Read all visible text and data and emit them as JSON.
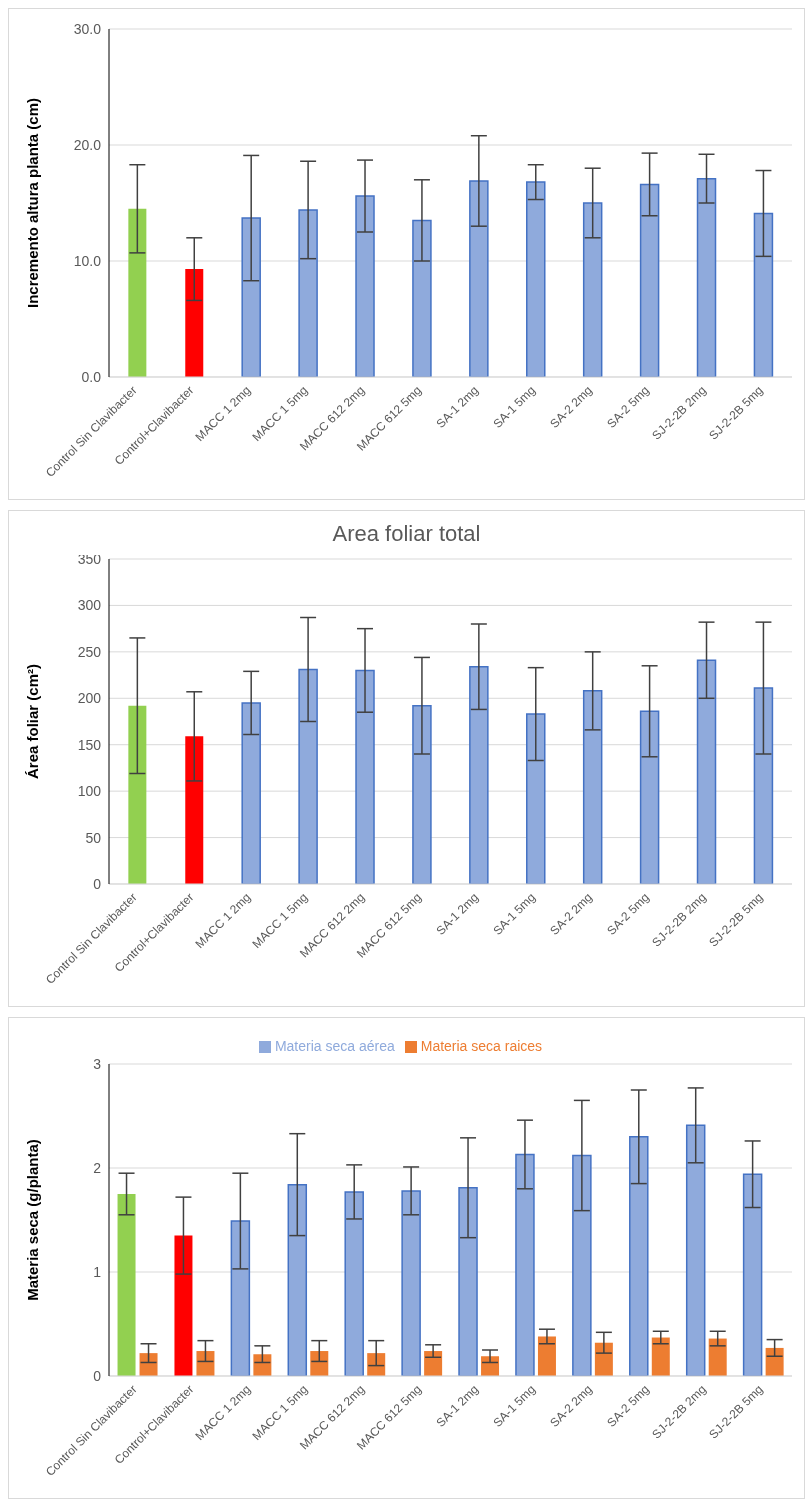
{
  "chart_data": [
    {
      "type": "bar",
      "ylabel": "Incremento altura planta (cm)",
      "categories": [
        "Control Sin Clavibacter",
        "Control+Clavibacter",
        "MACC 1 2mg",
        "MACC 1 5mg",
        "MACC 612 2mg",
        "MACC 612 5mg",
        "SA-1 2mg",
        "SA-1 5mg",
        "SA-2 2mg",
        "SA-2 5mg",
        "SJ-2-2B 2mg",
        "SJ-2-2B 5mg"
      ],
      "series": [
        {
          "values": [
            14.5,
            9.3,
            13.7,
            14.4,
            15.6,
            13.5,
            16.9,
            16.8,
            15.0,
            16.6,
            17.1,
            14.1
          ],
          "colors": [
            "#92d050",
            "#ff0000",
            "#8faadc",
            "#8faadc",
            "#8faadc",
            "#8faadc",
            "#8faadc",
            "#8faadc",
            "#8faadc",
            "#8faadc",
            "#8faadc",
            "#8faadc"
          ],
          "errors": [
            3.8,
            2.7,
            5.4,
            4.2,
            3.1,
            3.5,
            3.9,
            1.5,
            3.0,
            2.7,
            2.1,
            3.7
          ]
        }
      ],
      "ylim": [
        0,
        30
      ],
      "yticks": [
        {
          "value": 0,
          "label": "0.0"
        },
        {
          "value": 10,
          "label": "10.0"
        },
        {
          "value": 20,
          "label": "20.0"
        },
        {
          "value": 30,
          "label": "30.0"
        }
      ],
      "grid": "y"
    },
    {
      "type": "bar",
      "title": "Area foliar total",
      "ylabel": "Área foliar (cm²)",
      "categories": [
        "Control Sin Clavibacter",
        "Control+Clavibacter",
        "MACC 1 2mg",
        "MACC 1 5mg",
        "MACC 612 2mg",
        "MACC 612 5mg",
        "SA-1 2mg",
        "SA-1 5mg",
        "SA-2 2mg",
        "SA-2 5mg",
        "SJ-2-2B 2mg",
        "SJ-2-2B 5mg"
      ],
      "series": [
        {
          "values": [
            192,
            159,
            195,
            231,
            230,
            192,
            234,
            183,
            208,
            186,
            241,
            211
          ],
          "colors": [
            "#92d050",
            "#ff0000",
            "#8faadc",
            "#8faadc",
            "#8faadc",
            "#8faadc",
            "#8faadc",
            "#8faadc",
            "#8faadc",
            "#8faadc",
            "#8faadc",
            "#8faadc"
          ],
          "errors": [
            73,
            48,
            34,
            56,
            45,
            52,
            46,
            50,
            42,
            49,
            41,
            71
          ]
        }
      ],
      "ylim": [
        0,
        350
      ],
      "yticks": [
        0,
        50,
        100,
        150,
        200,
        250,
        300,
        350
      ],
      "grid": "y"
    },
    {
      "type": "bar",
      "ylabel": "Materia seca (g/planta)",
      "categories": [
        "Control Sin Clavibacter",
        "Control+Clavibacter",
        "MACC 1 2mg",
        "MACC 1 5mg",
        "MACC 612 2mg",
        "MACC 612 5mg",
        "SA-1 2mg",
        "SA-1 5mg",
        "SA-2 2mg",
        "SA-2 5mg",
        "SJ-2-2B 2mg",
        "SJ-2-2B 5mg"
      ],
      "series": [
        {
          "name": "Materia seca aérea",
          "color": "#8faadc",
          "values": [
            1.75,
            1.35,
            1.49,
            1.84,
            1.77,
            1.78,
            1.81,
            2.13,
            2.12,
            2.3,
            2.41,
            1.94
          ],
          "colors": [
            "#92d050",
            "#ff0000",
            "#8faadc",
            "#8faadc",
            "#8faadc",
            "#8faadc",
            "#8faadc",
            "#8faadc",
            "#8faadc",
            "#8faadc",
            "#8faadc",
            "#8faadc"
          ],
          "errors": [
            0.2,
            0.37,
            0.46,
            0.49,
            0.26,
            0.23,
            0.48,
            0.33,
            0.53,
            0.45,
            0.36,
            0.32
          ]
        },
        {
          "name": "Materia seca raices",
          "color": "#ed7d31",
          "values": [
            0.22,
            0.24,
            0.21,
            0.24,
            0.22,
            0.24,
            0.19,
            0.38,
            0.32,
            0.37,
            0.36,
            0.27
          ],
          "errors": [
            0.09,
            0.1,
            0.08,
            0.1,
            0.12,
            0.06,
            0.06,
            0.07,
            0.1,
            0.06,
            0.07,
            0.08
          ]
        }
      ],
      "ylim": [
        0,
        3
      ],
      "yticks": [
        0,
        1,
        2,
        3
      ],
      "grid": "y",
      "legend": "top"
    }
  ]
}
